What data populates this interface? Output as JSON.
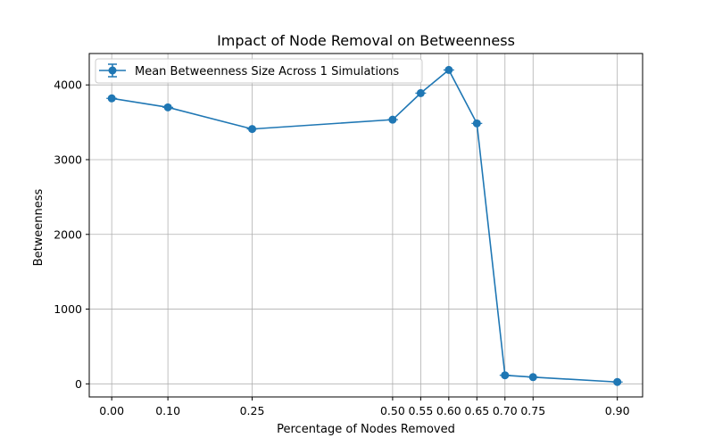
{
  "chart_data": {
    "type": "line",
    "title": "Impact of Node Removal on Betweenness",
    "xlabel": "Percentage of Nodes Removed",
    "ylabel": "Betweenness",
    "x": [
      0.0,
      0.1,
      0.25,
      0.5,
      0.55,
      0.6,
      0.65,
      0.7,
      0.75,
      0.9
    ],
    "x_tick_labels": [
      "0.00",
      "0.10",
      "0.25",
      "0.50",
      "0.55",
      "0.60",
      "0.65",
      "0.70",
      "0.75",
      "0.90"
    ],
    "y_ticks": [
      0,
      1000,
      2000,
      3000,
      4000
    ],
    "y_tick_labels": [
      "0",
      "1000",
      "2000",
      "3000",
      "4000"
    ],
    "xlim": [
      -0.04,
      0.945
    ],
    "ylim": [
      -175,
      4420
    ],
    "grid": true,
    "legend_position": "top-left",
    "series": [
      {
        "name": "Mean Betweenness Size Across 1 Simulations",
        "values": [
          3820,
          3700,
          3410,
          3535,
          3890,
          4200,
          3485,
          115,
          90,
          25
        ],
        "color": "#1f77b4",
        "marker": "circle",
        "error_bars": true
      }
    ]
  }
}
